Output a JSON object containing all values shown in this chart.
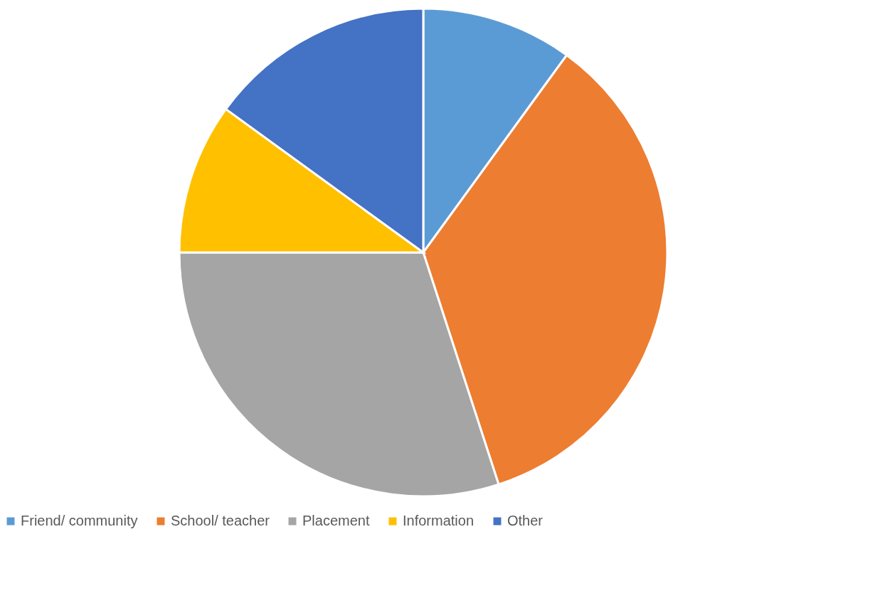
{
  "chart_data": {
    "type": "pie",
    "categories": [
      "Friend/ community",
      "School/ teacher",
      "Placement",
      "Information",
      "Other"
    ],
    "values": [
      10,
      35,
      30,
      10,
      15
    ],
    "colors": [
      "#5b9bd5",
      "#ed7d31",
      "#a5a5a5",
      "#ffc000",
      "#4472c4"
    ],
    "legend": "bottom"
  }
}
